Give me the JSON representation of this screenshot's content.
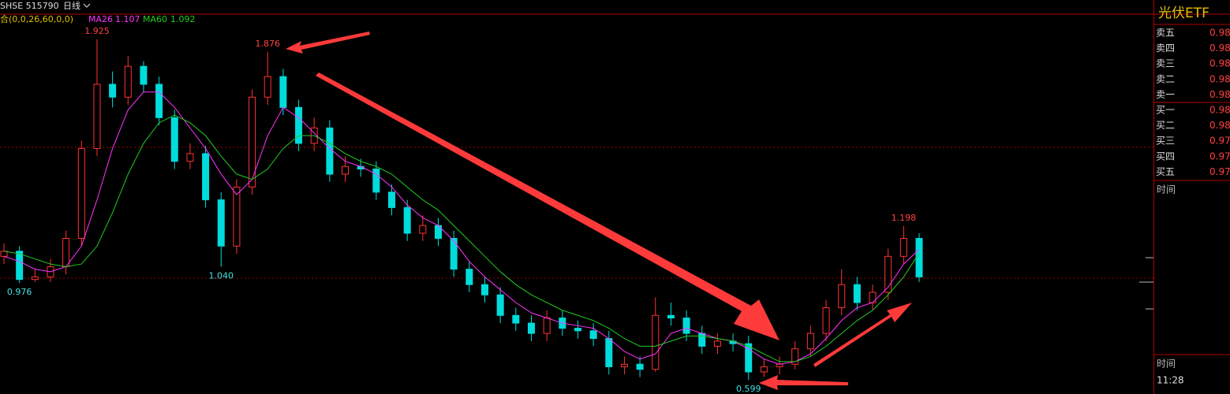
{
  "chart_data": {
    "type": "candlestick",
    "header": "SHSE 515790",
    "period": "日线",
    "indicator": "合(0,0,26,60,0,0)",
    "up_color": "#ff3232",
    "down_color": "#00dcdc",
    "open": [
      1.08,
      1.1,
      0.99,
      1.0,
      1.04,
      1.15,
      1.5,
      1.75,
      1.7,
      1.82,
      1.75,
      1.62,
      1.45,
      1.48,
      1.3,
      1.12,
      1.35,
      1.7,
      1.78,
      1.66,
      1.52,
      1.58,
      1.4,
      1.43,
      1.42,
      1.33,
      1.27,
      1.17,
      1.2,
      1.15,
      1.03,
      0.97,
      0.93,
      0.85,
      0.82,
      0.78,
      0.84,
      0.8,
      0.79,
      0.76,
      0.65,
      0.66,
      0.64,
      0.85,
      0.84,
      0.78,
      0.73,
      0.75,
      0.74,
      0.63,
      0.65,
      0.66,
      0.72,
      0.78,
      0.88,
      0.97,
      0.9,
      0.94,
      1.08,
      1.15
    ],
    "high": [
      1.13,
      1.12,
      1.03,
      1.07,
      1.18,
      1.53,
      1.925,
      1.8,
      1.86,
      1.84,
      1.78,
      1.65,
      1.52,
      1.51,
      1.33,
      1.38,
      1.73,
      1.876,
      1.81,
      1.69,
      1.62,
      1.61,
      1.47,
      1.46,
      1.45,
      1.36,
      1.3,
      1.24,
      1.23,
      1.18,
      1.06,
      1.0,
      0.96,
      0.88,
      0.85,
      0.87,
      0.87,
      0.83,
      0.82,
      0.79,
      0.69,
      0.69,
      0.92,
      0.9,
      0.87,
      0.81,
      0.78,
      0.78,
      0.77,
      0.68,
      0.69,
      0.75,
      0.81,
      0.91,
      1.03,
      1.0,
      0.97,
      1.11,
      1.198,
      1.17
    ],
    "low": [
      1.05,
      0.976,
      0.98,
      0.98,
      1.01,
      1.12,
      1.47,
      1.66,
      1.67,
      1.72,
      1.59,
      1.42,
      1.42,
      1.27,
      1.04,
      1.09,
      1.32,
      1.67,
      1.63,
      1.49,
      1.49,
      1.37,
      1.37,
      1.39,
      1.3,
      1.24,
      1.14,
      1.14,
      1.12,
      1.0,
      0.94,
      0.9,
      0.82,
      0.79,
      0.75,
      0.75,
      0.77,
      0.76,
      0.73,
      0.62,
      0.62,
      0.61,
      0.63,
      0.81,
      0.75,
      0.7,
      0.7,
      0.71,
      0.599,
      0.61,
      0.62,
      0.64,
      0.69,
      0.75,
      0.85,
      0.87,
      0.87,
      0.91,
      1.05,
      0.98
    ],
    "close": [
      1.1,
      0.99,
      1.0,
      1.04,
      1.15,
      1.5,
      1.75,
      1.7,
      1.82,
      1.75,
      1.62,
      1.45,
      1.48,
      1.3,
      1.12,
      1.35,
      1.7,
      1.78,
      1.66,
      1.52,
      1.58,
      1.4,
      1.43,
      1.42,
      1.33,
      1.27,
      1.17,
      1.2,
      1.15,
      1.03,
      0.97,
      0.93,
      0.85,
      0.82,
      0.78,
      0.84,
      0.8,
      0.79,
      0.76,
      0.65,
      0.66,
      0.64,
      0.85,
      0.84,
      0.78,
      0.73,
      0.75,
      0.74,
      0.63,
      0.65,
      0.66,
      0.72,
      0.78,
      0.88,
      0.97,
      0.9,
      0.94,
      1.08,
      1.15,
      1.0
    ],
    "ma": [
      {
        "name": "MA26",
        "color": "#ff33ff",
        "values": [
          1.08,
          1.06,
          1.03,
          1.02,
          1.04,
          1.12,
          1.3,
          1.5,
          1.65,
          1.72,
          1.72,
          1.66,
          1.58,
          1.5,
          1.4,
          1.32,
          1.38,
          1.55,
          1.66,
          1.62,
          1.56,
          1.5,
          1.45,
          1.43,
          1.4,
          1.35,
          1.28,
          1.23,
          1.2,
          1.14,
          1.06,
          1.0,
          0.95,
          0.9,
          0.86,
          0.84,
          0.82,
          0.81,
          0.8,
          0.76,
          0.71,
          0.68,
          0.7,
          0.78,
          0.8,
          0.78,
          0.76,
          0.75,
          0.72,
          0.68,
          0.66,
          0.67,
          0.7,
          0.76,
          0.83,
          0.88,
          0.9,
          0.96,
          1.05,
          1.107
        ]
      },
      {
        "name": "MA60",
        "color": "#22cc22",
        "values": [
          1.1,
          1.09,
          1.07,
          1.05,
          1.04,
          1.05,
          1.12,
          1.25,
          1.4,
          1.52,
          1.6,
          1.63,
          1.6,
          1.55,
          1.47,
          1.4,
          1.38,
          1.42,
          1.5,
          1.55,
          1.55,
          1.52,
          1.48,
          1.45,
          1.43,
          1.4,
          1.35,
          1.3,
          1.26,
          1.2,
          1.14,
          1.08,
          1.02,
          0.97,
          0.93,
          0.9,
          0.87,
          0.85,
          0.83,
          0.8,
          0.76,
          0.73,
          0.73,
          0.75,
          0.77,
          0.77,
          0.76,
          0.75,
          0.73,
          0.7,
          0.67,
          0.67,
          0.69,
          0.73,
          0.78,
          0.83,
          0.87,
          0.93,
          1.0,
          1.092
        ]
      }
    ],
    "annotations": [
      {
        "text": "1.925",
        "value": 1.925
      },
      {
        "text": "1.876",
        "value": 1.876
      },
      {
        "text": "1.040",
        "value": 1.04
      },
      {
        "text": "0.976",
        "value": 0.976
      },
      {
        "text": "1.198",
        "value": 1.198
      },
      {
        "text": "0.599",
        "value": 0.599
      }
    ],
    "ref_lines": [
      1.505,
      0.995
    ],
    "ylim": [
      0.544,
      2.023
    ]
  },
  "panel": {
    "title": "光伏ETF",
    "sell": [
      {
        "label": "卖五",
        "price": 0.98
      },
      {
        "label": "卖四",
        "price": 0.98
      },
      {
        "label": "卖三",
        "price": 0.98
      },
      {
        "label": "卖二",
        "price": 0.98
      },
      {
        "label": "卖一",
        "price": 0.98
      }
    ],
    "buy": [
      {
        "label": "买一",
        "price": 0.98
      },
      {
        "label": "买二",
        "price": 0.98
      },
      {
        "label": "买三",
        "price": 0.97
      },
      {
        "label": "买四",
        "price": 0.97
      },
      {
        "label": "买五",
        "price": 0.97
      }
    ],
    "time_header": "时间",
    "time_header2": "时间",
    "time": "11:28"
  }
}
